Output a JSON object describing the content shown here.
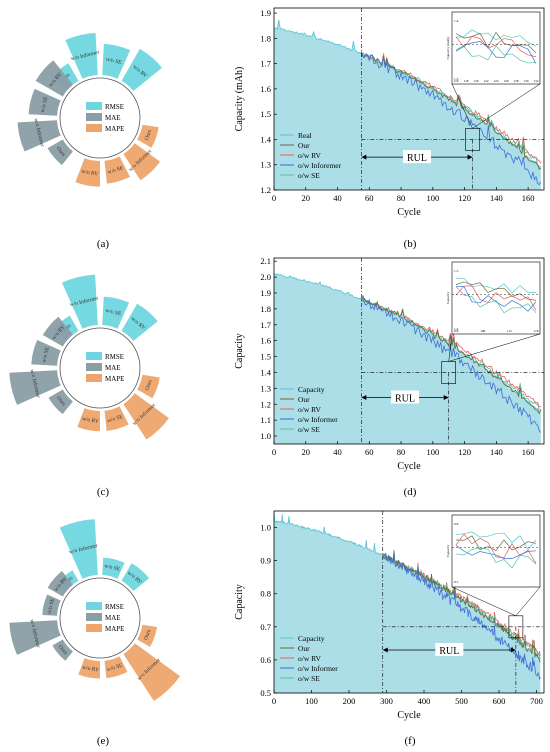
{
  "colors": {
    "rmse": "#6fd6df",
    "mae": "#8a9ea6",
    "mape": "#eea56b",
    "real": "#58c3d3",
    "our": "#6b6b3b",
    "rv": "#e55d5d",
    "informer": "#3e6fd6",
    "se": "#57c2a2",
    "fill": "#8fd3df"
  },
  "chart_data": [
    {
      "type": "radial-bar",
      "caption": "(a)",
      "legend": [
        "RMSE",
        "MAE",
        "MAPE"
      ],
      "categories": [
        "Ours",
        "w/o Informer",
        "w/o SE",
        "w/o RV"
      ],
      "series": [
        {
          "name": "RMSE",
          "values": [
            0.35,
            0.75,
            0.55,
            0.65
          ]
        },
        {
          "name": "MAE",
          "values": [
            0.3,
            0.7,
            0.5,
            0.55
          ]
        },
        {
          "name": "MAPE",
          "values": [
            0.28,
            0.55,
            0.4,
            0.45
          ]
        }
      ]
    },
    {
      "type": "radial-bar",
      "caption": "(c)",
      "legend": [
        "RMSE",
        "MAE",
        "MAPE"
      ],
      "categories": [
        "Ours",
        "w/o Informer",
        "w/o SE",
        "w/o RV"
      ],
      "series": [
        {
          "name": "RMSE",
          "values": [
            0.3,
            0.9,
            0.5,
            0.55
          ]
        },
        {
          "name": "MAE",
          "values": [
            0.28,
            0.85,
            0.45,
            0.4
          ]
        },
        {
          "name": "MAPE",
          "values": [
            0.3,
            0.75,
            0.35,
            0.35
          ]
        }
      ]
    },
    {
      "type": "radial-bar",
      "caption": "(e)",
      "legend": [
        "RMSE",
        "MAE",
        "MAPE"
      ],
      "categories": [
        "Ours",
        "w/o Informer",
        "w/o SE",
        "w/o RV"
      ],
      "series": [
        {
          "name": "RMSE",
          "values": [
            0.2,
            1.0,
            0.3,
            0.35
          ]
        },
        {
          "name": "MAE",
          "values": [
            0.2,
            0.85,
            0.25,
            0.3
          ]
        },
        {
          "name": "MAPE",
          "values": [
            0.25,
            1.0,
            0.3,
            0.3
          ]
        }
      ]
    },
    {
      "type": "line",
      "caption": "(b)",
      "xlabel": "Cycle",
      "ylabel": "Capacity (mAh)",
      "xlim": [
        0,
        170
      ],
      "ylim": [
        1.2,
        1.92
      ],
      "xticks": [
        "0",
        "20",
        "40",
        "60",
        "80",
        "100",
        "120",
        "140",
        "160"
      ],
      "yticks": [
        "1.2",
        "1.3",
        "1.4",
        "1.5",
        "1.6",
        "1.7",
        "1.8",
        "1.9"
      ],
      "legend": [
        "Real",
        "Our",
        "o/w RV",
        "o/w Inforemer",
        "o/w SE"
      ],
      "rul_label": "RUL",
      "start_x": 55,
      "end_x": 125,
      "threshold_y": 1.4,
      "cycles": 168,
      "start_y": 1.84,
      "end_y": 1.3,
      "inset_ylabel": "Capacity (mAh)",
      "inset_xticks": [
        "116",
        "118",
        "120",
        "122",
        "124",
        "126",
        "128",
        "130",
        "132"
      ],
      "inset_yticks": [
        "1.4",
        "1.3"
      ]
    },
    {
      "type": "line",
      "caption": "(d)",
      "xlabel": "Cycle",
      "ylabel": "Capacity",
      "xlim": [
        0,
        170
      ],
      "ylim": [
        0.95,
        2.12
      ],
      "xticks": [
        "0",
        "20",
        "40",
        "60",
        "80",
        "100",
        "120",
        "140",
        "160"
      ],
      "yticks": [
        "1.0",
        "1.1",
        "1.2",
        "1.3",
        "1.4",
        "1.5",
        "1.6",
        "1.7",
        "1.8",
        "1.9",
        "2.0",
        "2.1"
      ],
      "legend": [
        "Capacity",
        "Our",
        "o/w RV",
        "o/w Informer",
        "o/w SE"
      ],
      "rul_label": "RUL",
      "start_x": 55,
      "end_x": 110,
      "threshold_y": 1.4,
      "cycles": 168,
      "start_y": 2.02,
      "end_y": 1.17,
      "inset_ylabel": "Capacity",
      "inset_xticks": [
        "104",
        "108",
        "112",
        "116"
      ],
      "inset_yticks": [
        "1.5",
        "1.4"
      ]
    },
    {
      "type": "line",
      "caption": "(f)",
      "xlabel": "Cycle",
      "ylabel": "Capacity",
      "xlim": [
        0,
        720
      ],
      "ylim": [
        0.5,
        1.05
      ],
      "xticks": [
        "0",
        "100",
        "200",
        "300",
        "400",
        "500",
        "600",
        "700"
      ],
      "yticks": [
        "0.5",
        "0.6",
        "0.7",
        "0.8",
        "0.9",
        "1.0"
      ],
      "legend": [
        "Capacity",
        "Our",
        "o/w RV",
        "o/w Informer",
        "o/w SE"
      ],
      "rul_label": "RUL",
      "start_x": 290,
      "end_x": 645,
      "threshold_y": 0.7,
      "cycles": 710,
      "start_y": 1.02,
      "end_y": 0.61,
      "inset_ylabel": "Capacity",
      "inset_xticks": [],
      "inset_yticks": [
        "0.8",
        "0.7"
      ]
    }
  ]
}
